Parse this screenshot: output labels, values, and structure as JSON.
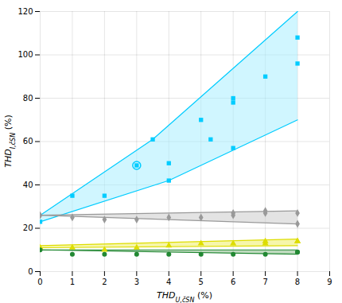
{
  "chart_data": {
    "type": "scatter",
    "xlabel": "THDU,čSN (%)",
    "xlabel_subscript": "U,čSN",
    "ylabel": "THDI,čSN (%)",
    "ylabel_subscript": "I,čSN",
    "xlim": [
      0,
      9
    ],
    "ylim": [
      0,
      120
    ],
    "xticks": [
      0,
      1,
      2,
      3,
      4,
      5,
      6,
      7,
      8,
      9
    ],
    "yticks": [
      0,
      20,
      40,
      60,
      80,
      100,
      120
    ],
    "grid": true,
    "series": [
      {
        "color": "#00ccff",
        "marker": "square",
        "x": [
          0,
          1,
          2,
          3,
          3.5,
          4,
          4,
          5,
          5.3,
          6,
          6,
          6,
          7,
          8,
          8
        ],
        "values": [
          23,
          35,
          35,
          49,
          61,
          42,
          50,
          70,
          61,
          80,
          57,
          78,
          90,
          108,
          96
        ],
        "band": {
          "color": "#aaeeff",
          "upper_x": [
            0,
            3.5,
            8
          ],
          "upper_y": [
            26,
            61,
            120
          ],
          "lower_x": [
            0,
            4,
            8
          ],
          "lower_y": [
            23,
            42,
            70
          ]
        }
      },
      {
        "color": "#00ccff",
        "marker": "circle-open",
        "x": [
          3
        ],
        "values": [
          49
        ]
      },
      {
        "color": "#999999",
        "marker": "diamond",
        "x": [
          0,
          1,
          2,
          3,
          4,
          5,
          6,
          6,
          7,
          7,
          8,
          8
        ],
        "values": [
          26,
          25,
          24,
          24,
          25,
          25,
          26,
          27,
          27,
          28,
          22,
          27
        ],
        "band": {
          "color": "#cccccc",
          "upper_x": [
            0,
            8
          ],
          "upper_y": [
            26,
            28
          ],
          "lower_x": [
            0,
            8
          ],
          "lower_y": [
            26,
            22
          ]
        }
      },
      {
        "color": "#dddd00",
        "marker": "triangle",
        "x": [
          0,
          1,
          2,
          3,
          4,
          5,
          6,
          7,
          7,
          8,
          8
        ],
        "values": [
          11,
          11,
          10,
          11,
          12,
          13,
          13,
          14,
          13,
          14,
          14
        ],
        "band": {
          "color": "#eeee66",
          "upper_x": [
            0,
            8
          ],
          "upper_y": [
            12,
            15
          ],
          "lower_x": [
            0,
            8
          ],
          "lower_y": [
            11,
            12
          ]
        }
      },
      {
        "color": "#228833",
        "marker": "circle",
        "x": [
          0,
          1,
          2,
          3,
          4,
          5,
          6,
          7,
          8,
          8
        ],
        "values": [
          10,
          8,
          8,
          8,
          8,
          8,
          8,
          8,
          9,
          9
        ],
        "band": {
          "color": "#88bb88",
          "upper_x": [
            0,
            8
          ],
          "upper_y": [
            10,
            10
          ],
          "lower_x": [
            0,
            8
          ],
          "lower_y": [
            10,
            8
          ]
        }
      }
    ]
  }
}
